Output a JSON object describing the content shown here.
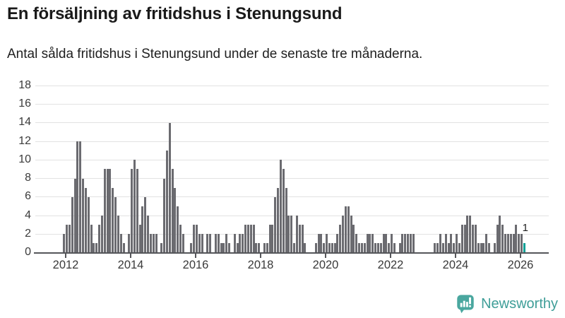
{
  "header": {
    "title": "En försäljning av fritidshus i Stenungsund",
    "subtitle": "Antal sålda fritidshus i Stenungsund under de senaste tre månaderna."
  },
  "chart_data": {
    "type": "bar",
    "title": "En försäljning av fritidshus i Stenungsund",
    "subtitle": "Antal sålda fritidshus i Stenungsund under de senaste tre månaderna.",
    "frequency": "monthly",
    "x_start": "2011-12",
    "x_end": "2026-02",
    "ylim": [
      0,
      18
    ],
    "y_ticks": [
      0,
      2,
      4,
      6,
      8,
      10,
      12,
      14,
      16,
      18
    ],
    "x_ticks": [
      2012,
      2014,
      2016,
      2018,
      2020,
      2022,
      2024,
      2026
    ],
    "grid": "horizontal",
    "bar_color": "#6b6b70",
    "highlight_color": "#0aa096",
    "highlight_last": true,
    "last_value_label": "1",
    "values": [
      2,
      3,
      3,
      6,
      8,
      12,
      12,
      8,
      7,
      6,
      3,
      1,
      1,
      3,
      4,
      9,
      9,
      9,
      7,
      6,
      4,
      2,
      1,
      0,
      2,
      9,
      10,
      9,
      3,
      5,
      6,
      4,
      2,
      2,
      2,
      0,
      1,
      8,
      11,
      14,
      9,
      7,
      5,
      3,
      2,
      0,
      0,
      1,
      3,
      3,
      2,
      2,
      0,
      2,
      2,
      0,
      2,
      2,
      1,
      1,
      2,
      1,
      0,
      2,
      1,
      2,
      2,
      3,
      3,
      3,
      3,
      1,
      1,
      0,
      1,
      1,
      3,
      3,
      6,
      7,
      10,
      9,
      7,
      4,
      4,
      1,
      4,
      3,
      3,
      1,
      0,
      0,
      0,
      1,
      2,
      2,
      1,
      2,
      1,
      1,
      1,
      2,
      3,
      4,
      5,
      5,
      4,
      3,
      2,
      1,
      1,
      1,
      2,
      2,
      2,
      1,
      1,
      1,
      2,
      2,
      1,
      2,
      1,
      0,
      1,
      2,
      2,
      2,
      2,
      2,
      0,
      0,
      0,
      0,
      0,
      0,
      0,
      1,
      1,
      2,
      1,
      2,
      1,
      2,
      1,
      2,
      1,
      3,
      3,
      4,
      4,
      3,
      3,
      1,
      1,
      1,
      2,
      1,
      0,
      1,
      3,
      4,
      3,
      2,
      2,
      2,
      2,
      3,
      2,
      2,
      1
    ]
  },
  "footer": {
    "brand": "Newsworthy",
    "logo_icon": "newsworthy-pin-chart-icon",
    "brand_color": "#3f9e98",
    "icon_color": "#4aa79f"
  }
}
